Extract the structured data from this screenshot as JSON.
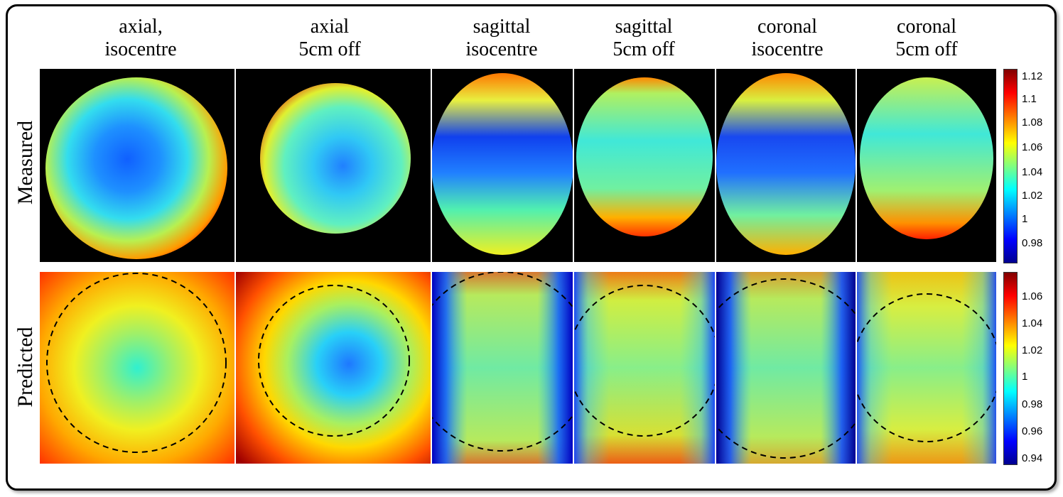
{
  "columns": [
    {
      "line1": "axial,",
      "line2": "isocentre"
    },
    {
      "line1": "axial",
      "line2": "5cm off"
    },
    {
      "line1": "sagittal",
      "line2": "isocentre"
    },
    {
      "line1": "sagittal",
      "line2": "5cm off"
    },
    {
      "line1": "coronal",
      "line2": "isocentre"
    },
    {
      "line1": "coronal",
      "line2": "5cm off"
    }
  ],
  "rows": {
    "measured": "Measured",
    "predicted": "Predicted"
  },
  "colorbar_measured": {
    "ticks": [
      "1.12",
      "1.1",
      "1.08",
      "1.06",
      "1.04",
      "1.02",
      "1",
      "0.98"
    ]
  },
  "colorbar_predicted": {
    "ticks": [
      "1.06",
      "1.04",
      "1.02",
      "1",
      "0.98",
      "0.96",
      "0.94"
    ]
  },
  "colors": {
    "jet": [
      "#00008f",
      "#0000ff",
      "#00ffff",
      "#ffff00",
      "#ff0000",
      "#800000"
    ],
    "background": "#000000",
    "frame": "#000000"
  }
}
